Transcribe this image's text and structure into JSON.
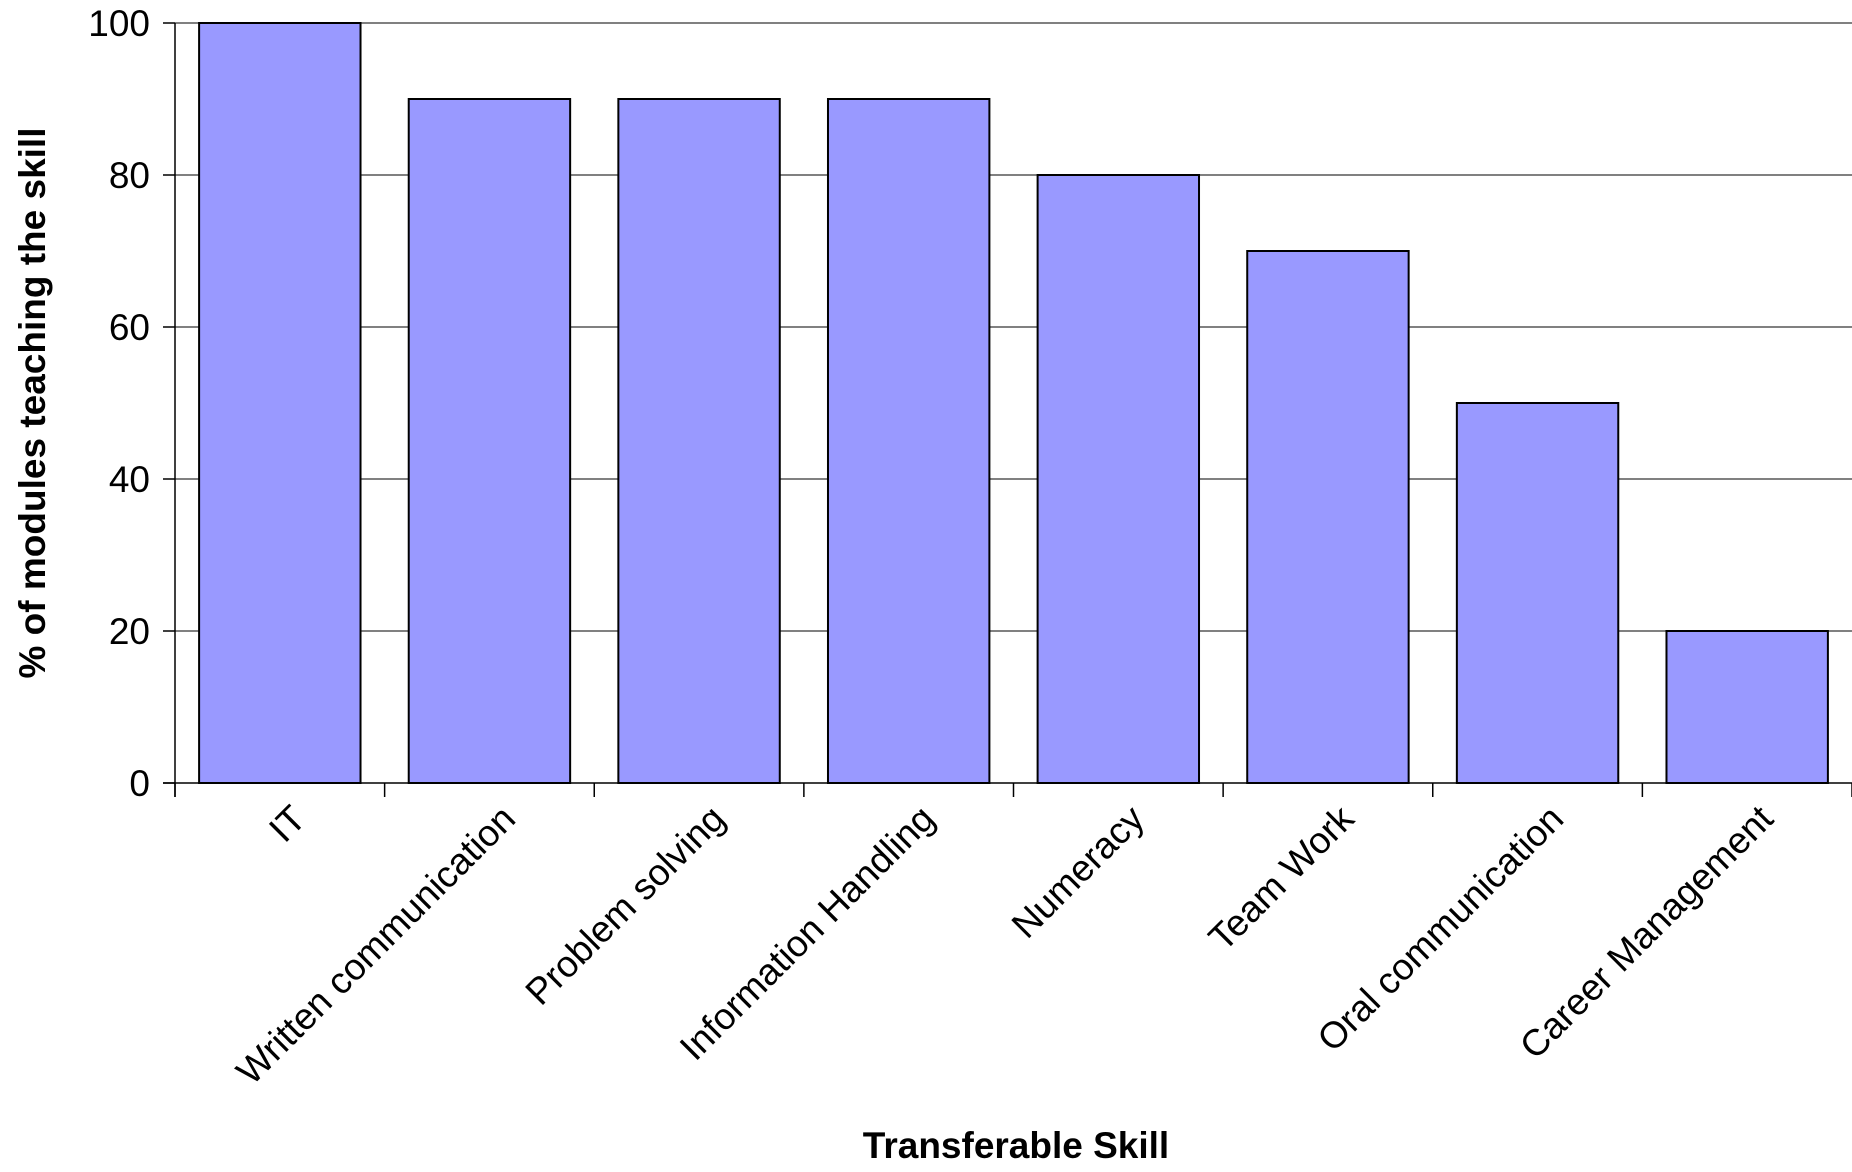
{
  "chart_data": {
    "type": "bar",
    "title": "",
    "xlabel": "Transferable Skill",
    "ylabel": "% of modules teaching the skill",
    "categories": [
      "IT",
      "Written communication",
      "Problem solving",
      "Information Handling",
      "Numeracy",
      "Team Work",
      "Oral communication",
      "Career Management"
    ],
    "values": [
      100,
      90,
      90,
      90,
      80,
      70,
      50,
      20
    ],
    "ylim": [
      0,
      100
    ],
    "yticks": [
      0,
      20,
      40,
      60,
      80,
      100
    ],
    "grid": true,
    "legend": "none",
    "colors": {
      "bar_fill": "#9999ff",
      "bar_stroke": "#000000",
      "gridline": "#000000",
      "axis": "#000000"
    }
  }
}
